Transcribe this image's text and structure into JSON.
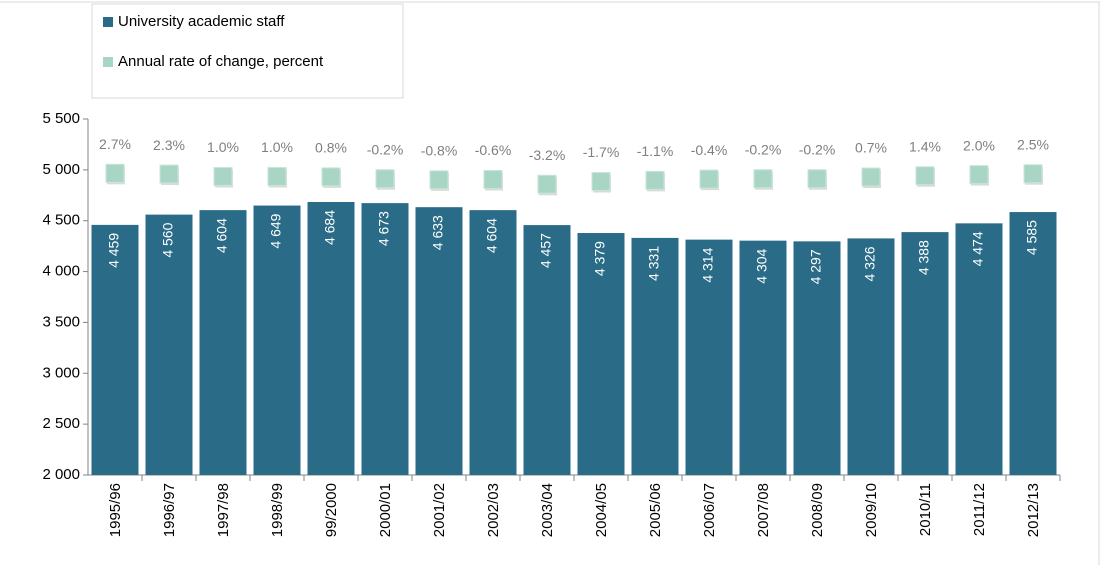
{
  "chart_data": {
    "type": "bar",
    "categories": [
      "1995/96",
      "1996/97",
      "1997/98",
      "1998/99",
      "99/2000",
      "2000/01",
      "2001/02",
      "2002/03",
      "2003/04",
      "2004/05",
      "2005/06",
      "2006/07",
      "2007/08",
      "2008/09",
      "2009/10",
      "2010/11",
      "2011/12",
      "2012/13"
    ],
    "series": [
      {
        "name": "University academic staff",
        "color": "#2a6b87",
        "values": [
          4459,
          4560,
          4604,
          4649,
          4684,
          4673,
          4633,
          4604,
          4457,
          4379,
          4331,
          4314,
          4304,
          4297,
          4326,
          4388,
          4474,
          4585
        ],
        "value_labels": [
          "4 459",
          "4 560",
          "4 604",
          "4 649",
          "4 684",
          "4 673",
          "4 633",
          "4 604",
          "4 457",
          "4 379",
          "4 331",
          "4 314",
          "4 304",
          "4 297",
          "4 326",
          "4 388",
          "4 474",
          "4 585"
        ]
      },
      {
        "name": "Annual rate of change, percent",
        "color": "#a9d6c4",
        "axis": "y2",
        "values": [
          2.7,
          2.3,
          1.0,
          1.0,
          0.8,
          -0.2,
          -0.8,
          -0.6,
          -3.2,
          -1.7,
          -1.1,
          -0.4,
          -0.2,
          -0.2,
          0.7,
          1.4,
          2.0,
          2.5
        ],
        "value_labels": [
          "2.7%",
          "2.3%",
          "1.0%",
          "1.0%",
          "0.8%",
          "-0.2%",
          "-0.8%",
          "-0.6%",
          "-3.2%",
          "-1.7%",
          "-1.1%",
          "-0.4%",
          "-0.2%",
          "-0.2%",
          "0.7%",
          "1.4%",
          "2.0%",
          "2.5%"
        ]
      }
    ],
    "ylim": [
      2000,
      5500
    ],
    "yticks": [
      {
        "value": 2000,
        "label": "2 000"
      },
      {
        "value": 2500,
        "label": "2 500"
      },
      {
        "value": 3000,
        "label": "3 000"
      },
      {
        "value": 3500,
        "label": "3 500"
      },
      {
        "value": 4000,
        "label": "4 000"
      },
      {
        "value": 4500,
        "label": "4 500"
      },
      {
        "value": 5000,
        "label": "5 000"
      },
      {
        "value": 5500,
        "label": "5 500"
      }
    ],
    "y2lim": [
      -160,
      32
    ],
    "legend": "top-left"
  }
}
